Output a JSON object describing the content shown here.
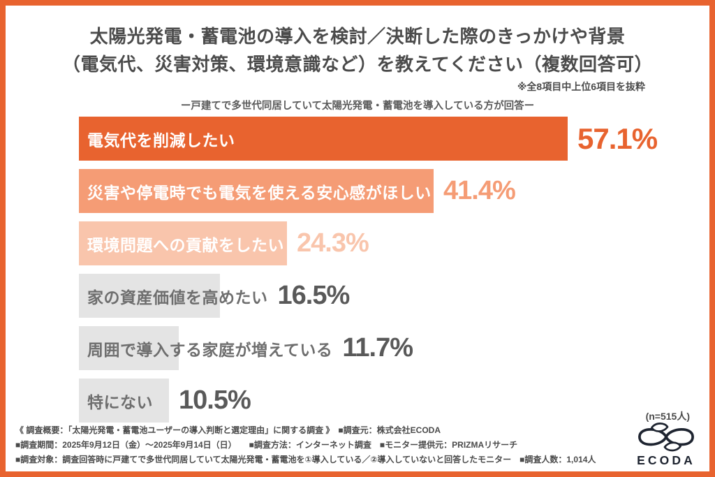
{
  "page": {
    "border_color": "#E8632F",
    "background": "#FFFFFF"
  },
  "header": {
    "title_line1": "太陽光発電・蓄電池の導入を検討／決断した際のきっかけや背景",
    "title_line2": "（電気代、災害対策、環境意識など）を教えてください（複数回答可）",
    "note": "※全8項目中上位6項目を抜粋",
    "subtitle": "ー戸建てで多世代同居していて太陽光発電・蓄電池を導入している方が回答ー"
  },
  "chart_data": {
    "type": "bar",
    "orientation": "horizontal",
    "title": "太陽光発電・蓄電池の導入を検討／決断した際のきっかけや背景（電気代、災害対策、環境意識など）を教えてください（複数回答可）",
    "categories": [
      "電気代を削減したい",
      "災害や停電時でも電気を使える安心感がほしい",
      "環境問題への貢献をしたい",
      "家の資産価値を高めたい",
      "周囲で導入する家庭が増えている",
      "特にない"
    ],
    "values": [
      57.1,
      41.4,
      24.3,
      16.5,
      11.7,
      10.5
    ],
    "unit": "%",
    "xlim": [
      0,
      60
    ],
    "grid": false,
    "legend": false,
    "sample_size_label": "(n=515人)",
    "bars": [
      {
        "label": "電気代を削減したい",
        "value": 57.1,
        "display": "57.1%",
        "bar_color": "#E8632F",
        "label_color": "#FFFFFF",
        "value_color": "#E8632F"
      },
      {
        "label": "災害や停電時でも電気を使える安心感がほしい",
        "value": 41.4,
        "display": "41.4%",
        "bar_color": "#F59C75",
        "label_color": "#FFFFFF",
        "value_color": "#F59C75"
      },
      {
        "label": "環境問題への貢献をしたい",
        "value": 24.3,
        "display": "24.3%",
        "bar_color": "#F9C5AC",
        "label_color": "#FFFFFF",
        "value_color": "#F9C5AC"
      },
      {
        "label": "家の資産価値を高めたい",
        "value": 16.5,
        "display": "16.5%",
        "bar_color": "#E4E4E4",
        "label_color": "#6E6E6E",
        "value_color": "#595959"
      },
      {
        "label": "周囲で導入する家庭が増えている",
        "value": 11.7,
        "display": "11.7%",
        "bar_color": "#E4E4E4",
        "label_color": "#6E6E6E",
        "value_color": "#595959"
      },
      {
        "label": "特にない",
        "value": 10.5,
        "display": "10.5%",
        "bar_color": "#E4E4E4",
        "label_color": "#6E6E6E",
        "value_color": "#595959"
      }
    ]
  },
  "footer": {
    "line1": "《 調査概要：「太陽光発電・蓄電池ユーザーの導入判断と選定理由」に関する調査 》　■調査元：株式会社ECODA",
    "line2": "■調査期間：2025年9月12日（金）～2025年9月14日（日）　　■調査方法：インターネット調査　■モニター提供元：PRIZMAリサーチ",
    "line3": "■調査対象：調査回答時に戸建てで多世代同居していて太陽光発電・蓄電池を①導入している／②導入していないと回答したモニター　■調査人数：1,014人"
  },
  "logo": {
    "text": "ECODA",
    "color": "#1E2430"
  }
}
